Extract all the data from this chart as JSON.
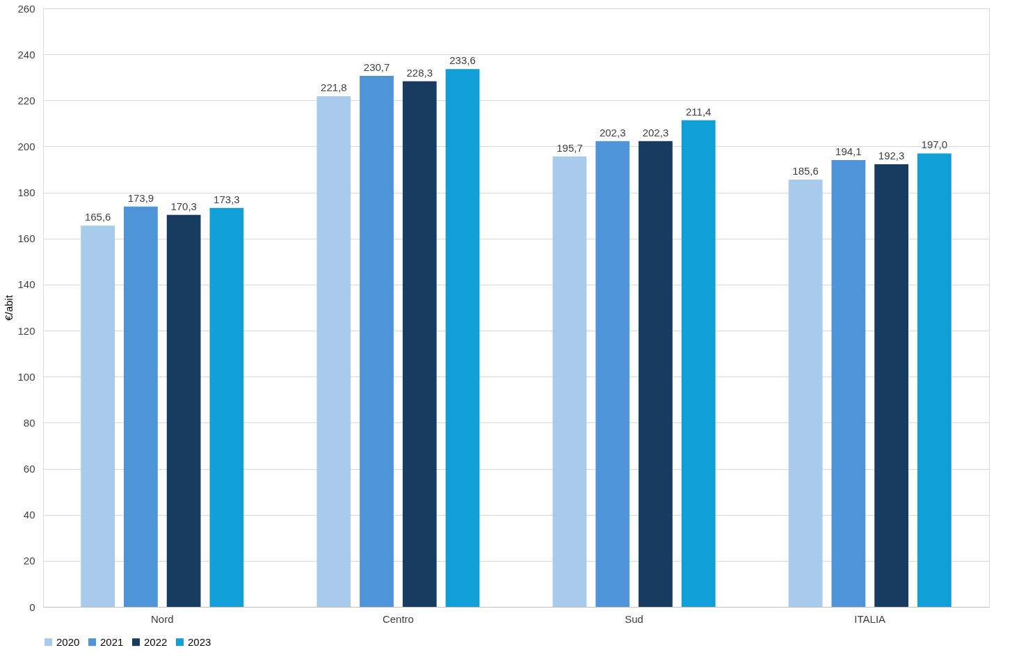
{
  "chart_data": {
    "type": "bar",
    "ylabel": "€/abit",
    "categories": [
      "Nord",
      "Centro",
      "Sud",
      "ITALIA"
    ],
    "series": [
      {
        "name": "2020",
        "color": "#a9cbeb",
        "values": [
          165.6,
          221.8,
          195.7,
          185.6
        ],
        "value_labels": [
          "165,6",
          "221,8",
          "195,7",
          "185,6"
        ]
      },
      {
        "name": "2021",
        "color": "#4f94d8",
        "values": [
          173.9,
          230.7,
          202.3,
          194.1
        ],
        "value_labels": [
          "173,9",
          "230,7",
          "202,3",
          "194,1"
        ]
      },
      {
        "name": "2022",
        "color": "#173b61",
        "values": [
          170.3,
          228.3,
          202.3,
          192.3
        ],
        "value_labels": [
          "170,3",
          "228,3",
          "202,3",
          "192,3"
        ]
      },
      {
        "name": "2023",
        "color": "#109fd6",
        "values": [
          173.3,
          233.6,
          211.4,
          197.0
        ],
        "value_labels": [
          "173,3",
          "233,6",
          "211,4",
          "197,0"
        ]
      }
    ],
    "ylim": [
      0,
      260
    ],
    "yticks": [
      0,
      20,
      40,
      60,
      80,
      100,
      120,
      140,
      160,
      180,
      200,
      220,
      240,
      260
    ],
    "grid": "y",
    "legend": "bottom"
  }
}
